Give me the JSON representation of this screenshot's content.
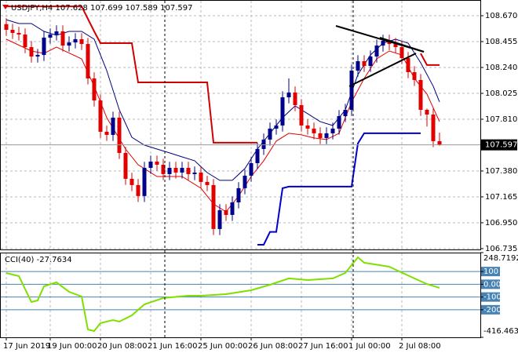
{
  "chart_data": {
    "type": "candlestick",
    "symbol": "USDJPY,H4",
    "up_color": "#00008b",
    "down_color": "#e00000",
    "xlim": [
      -1,
      75.5
    ],
    "ylim": [
      106.728,
      108.768
    ],
    "xticks": [
      {
        "value": 0,
        "label": "17 Jun 2019"
      },
      {
        "value": 7,
        "label": "19 Jun 00:00"
      },
      {
        "value": 15,
        "label": "20 Jun 08:00"
      },
      {
        "value": 23,
        "label": "21 Jun 16:00"
      },
      {
        "value": 31,
        "label": "25 Jun 00:00"
      },
      {
        "value": 39,
        "label": "26 Jun 08:00"
      },
      {
        "value": 47,
        "label": "27 Jun 16:00"
      },
      {
        "value": 55,
        "label": "1 Jul 00:00"
      },
      {
        "value": 63,
        "label": "2 Jul 08:00"
      }
    ],
    "yticks": [
      {
        "value": 108.67,
        "label": "108.670"
      },
      108.455,
      {
        "value": 108.24,
        "label": "108.240"
      },
      108.025,
      {
        "value": 107.81,
        "label": "107.810"
      },
      {
        "value": 107.38,
        "label": "107.380"
      },
      107.165,
      {
        "value": 106.95,
        "label": "106.950"
      },
      106.735
    ],
    "open": [
      108.6,
      108.553,
      108.527,
      108.514,
      108.409,
      108.331,
      108.344,
      108.488,
      108.514,
      108.54,
      108.422,
      108.448,
      108.475,
      108.435,
      108.149,
      107.966,
      107.706,
      107.68,
      107.823,
      107.53,
      107.315,
      107.263,
      107.172,
      107.406,
      107.458,
      107.432,
      107.354,
      107.406,
      107.367,
      107.406,
      107.354,
      107.367,
      107.289,
      107.263,
      106.898,
      107.054,
      107.015,
      107.119,
      107.237,
      107.341,
      107.445,
      107.563,
      107.641,
      107.732,
      107.758,
      107.992,
      108.032,
      107.927,
      107.758,
      107.732,
      107.693,
      107.654,
      107.693,
      107.732,
      107.836,
      107.888,
      108.214,
      108.292,
      108.253,
      108.331,
      108.422,
      108.462,
      108.435,
      108.409,
      108.318,
      108.201,
      108.136,
      107.888,
      107.849,
      107.628
    ],
    "high": [
      108.65,
      108.603,
      108.577,
      108.564,
      108.459,
      108.394,
      108.538,
      108.564,
      108.59,
      108.59,
      108.498,
      108.525,
      108.525,
      108.485,
      108.199,
      108.016,
      107.756,
      107.873,
      107.873,
      107.58,
      107.365,
      107.313,
      107.456,
      107.508,
      107.508,
      107.482,
      107.456,
      107.456,
      107.456,
      107.456,
      107.417,
      107.417,
      107.339,
      107.313,
      107.104,
      107.104,
      107.169,
      107.287,
      107.391,
      107.495,
      107.613,
      107.691,
      107.782,
      107.808,
      108.042,
      108.15,
      108.082,
      107.977,
      107.808,
      107.782,
      107.743,
      107.743,
      107.782,
      107.886,
      107.938,
      108.264,
      108.342,
      108.342,
      108.381,
      108.472,
      108.512,
      108.512,
      108.485,
      108.459,
      108.368,
      108.251,
      108.186,
      107.899,
      107.899,
      107.699
    ],
    "low": [
      108.503,
      108.477,
      108.464,
      108.359,
      108.281,
      108.281,
      108.294,
      108.438,
      108.464,
      108.372,
      108.372,
      108.398,
      108.385,
      108.099,
      107.916,
      107.656,
      107.63,
      107.63,
      107.48,
      107.265,
      107.213,
      107.122,
      107.122,
      107.356,
      107.382,
      107.304,
      107.304,
      107.317,
      107.317,
      107.304,
      107.304,
      107.239,
      107.213,
      106.848,
      106.848,
      106.965,
      106.965,
      107.069,
      107.187,
      107.291,
      107.395,
      107.513,
      107.591,
      107.682,
      107.708,
      107.942,
      107.877,
      107.708,
      107.682,
      107.643,
      107.604,
      107.604,
      107.643,
      107.682,
      107.786,
      107.838,
      108.164,
      108.203,
      108.203,
      108.281,
      108.372,
      108.385,
      108.359,
      108.268,
      108.151,
      108.086,
      107.838,
      107.75,
      107.578,
      107.589
    ],
    "close": [
      108.553,
      108.527,
      108.514,
      108.409,
      108.331,
      108.344,
      108.488,
      108.514,
      108.54,
      108.422,
      108.448,
      108.475,
      108.435,
      108.149,
      107.966,
      107.706,
      107.68,
      107.823,
      107.53,
      107.315,
      107.263,
      107.172,
      107.406,
      107.458,
      107.432,
      107.354,
      107.406,
      107.367,
      107.406,
      107.354,
      107.367,
      107.289,
      107.263,
      106.898,
      107.054,
      107.015,
      107.119,
      107.237,
      107.341,
      107.445,
      107.563,
      107.641,
      107.732,
      107.758,
      107.992,
      108.032,
      107.927,
      107.758,
      107.732,
      107.693,
      107.654,
      107.693,
      107.732,
      107.836,
      107.888,
      108.214,
      108.292,
      108.253,
      108.331,
      108.422,
      108.462,
      108.435,
      108.409,
      108.318,
      108.201,
      108.136,
      107.888,
      107.849,
      107.628,
      107.597
    ],
    "overlays": [
      {
        "color": "#e00000",
        "width": 1,
        "x": [
          0,
          4,
          6,
          8,
          12,
          14,
          16,
          19,
          21,
          24,
          28,
          31,
          33,
          35,
          37,
          39,
          41,
          43,
          45,
          47,
          49,
          51,
          53,
          55,
          57,
          59,
          61,
          63,
          65,
          67,
          69
        ],
        "values": [
          108.475,
          108.377,
          108.357,
          108.409,
          108.312,
          108.084,
          107.823,
          107.562,
          107.432,
          107.334,
          107.334,
          107.237,
          107.106,
          107.041,
          107.172,
          107.334,
          107.465,
          107.628,
          107.693,
          107.68,
          107.654,
          107.641,
          107.693,
          107.953,
          108.149,
          108.312,
          108.377,
          108.344,
          108.149,
          108.019,
          107.79
        ]
      },
      {
        "color": "#000080",
        "width": 1,
        "x": [
          0,
          2,
          4,
          6,
          8,
          10,
          12,
          14,
          16,
          18,
          20,
          22,
          24,
          26,
          28,
          30,
          32,
          34,
          36,
          38,
          40,
          42,
          44,
          46,
          48,
          50,
          52,
          54,
          56,
          58,
          60,
          62,
          64,
          66,
          68,
          69
        ],
        "values": [
          108.637,
          108.605,
          108.605,
          108.54,
          108.507,
          108.54,
          108.54,
          108.475,
          108.214,
          107.888,
          107.66,
          107.595,
          107.562,
          107.53,
          107.497,
          107.465,
          107.367,
          107.302,
          107.302,
          107.4,
          107.562,
          107.693,
          107.823,
          107.921,
          107.856,
          107.79,
          107.758,
          107.888,
          108.181,
          108.344,
          108.442,
          108.475,
          108.442,
          108.279,
          108.084,
          107.953
        ]
      },
      {
        "color": "#d00000",
        "width": 2,
        "x": [
          0,
          12,
          14,
          15,
          20,
          21,
          32,
          33,
          40,
          null,
          66,
          67,
          69
        ],
        "values": [
          108.748,
          108.748,
          108.54,
          108.442,
          108.442,
          108.116,
          108.116,
          107.615,
          107.615,
          null,
          108.357,
          108.26,
          108.26
        ]
      },
      {
        "color": "#0000cc",
        "width": 2,
        "x": [
          40,
          41,
          42,
          43,
          44,
          45,
          55,
          56,
          57,
          66
        ],
        "values": [
          106.767,
          106.767,
          106.874,
          106.874,
          107.237,
          107.25,
          107.25,
          107.609,
          107.693,
          107.693
        ]
      }
    ],
    "cci": {
      "label": "CCI(40)",
      "color": "#7fe000",
      "level_color": "#4682b4",
      "ylim": [
        -416.463,
        248.7192
      ],
      "yticks": [
        248.7192,
        100,
        {
          "value": 0,
          "label": "0.00"
        },
        -100,
        -200,
        -416.463
      ],
      "x": [
        0,
        2,
        4,
        5,
        6,
        8,
        10,
        12,
        13,
        14,
        15,
        17,
        18,
        20,
        22,
        25,
        29,
        31,
        35,
        39,
        42,
        45,
        48,
        52,
        54,
        56,
        57,
        61,
        65,
        67,
        69
      ],
      "values": [
        88.7,
        64,
        -139,
        -127,
        -16,
        15,
        -59,
        -96,
        -355,
        -367,
        -305,
        -281,
        -293,
        -244,
        -158,
        -108,
        -90,
        -90,
        -78,
        -47,
        -4,
        46,
        33,
        46,
        89,
        212,
        169,
        138,
        46,
        2,
        -27.7634
      ]
    }
  }
}
